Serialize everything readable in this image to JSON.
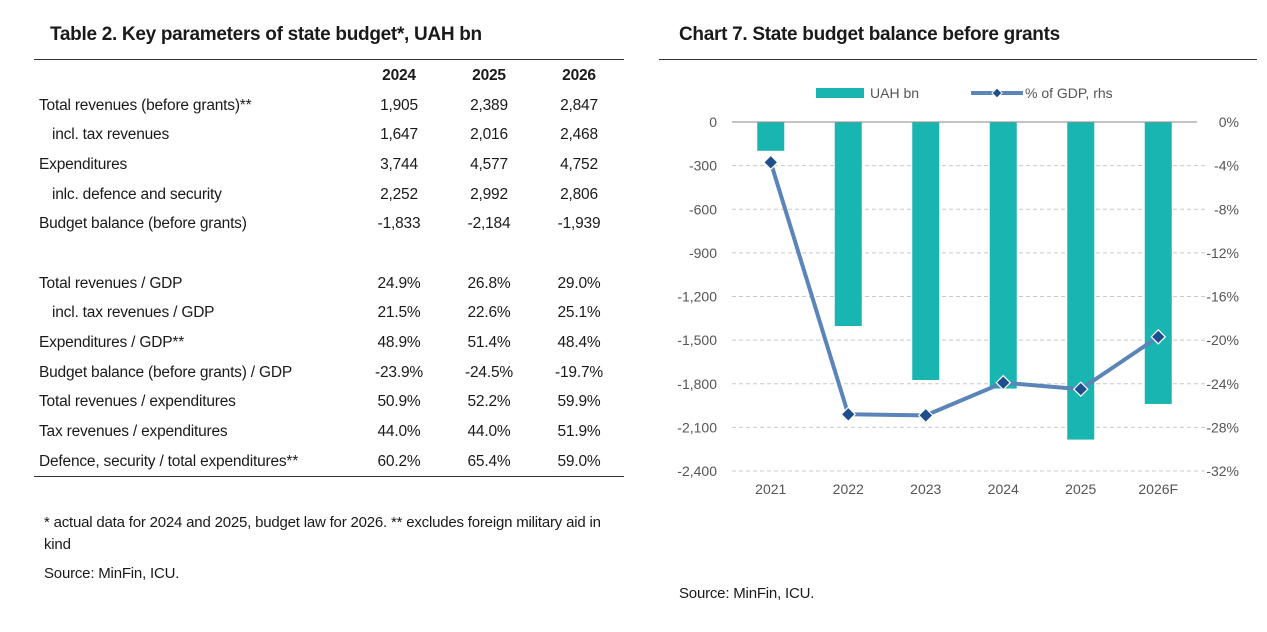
{
  "table": {
    "title": "Table 2. Key parameters of state budget*, UAH bn",
    "columns": [
      "2024",
      "2025",
      "2026"
    ],
    "rows": [
      {
        "label": "Total revenues (before grants)**",
        "indent": false,
        "values": [
          "1,905",
          "2,389",
          "2,847"
        ]
      },
      {
        "label": "incl. tax revenues",
        "indent": true,
        "values": [
          "1,647",
          "2,016",
          "2,468"
        ]
      },
      {
        "label": "Expenditures",
        "indent": false,
        "values": [
          "3,744",
          "4,577",
          "4,752"
        ]
      },
      {
        "label": "inlc. defence and security",
        "indent": true,
        "values": [
          "2,252",
          "2,992",
          "2,806"
        ]
      },
      {
        "label": "Budget balance (before grants)",
        "indent": false,
        "values": [
          "-1,833",
          "-2,184",
          "-1,939"
        ]
      },
      {
        "label": "",
        "indent": false,
        "values": [
          "",
          "",
          ""
        ]
      },
      {
        "label": "Total revenues / GDP",
        "indent": false,
        "values": [
          "24.9%",
          "26.8%",
          "29.0%"
        ]
      },
      {
        "label": "incl. tax revenues / GDP",
        "indent": true,
        "values": [
          "21.5%",
          "22.6%",
          "25.1%"
        ]
      },
      {
        "label": "Expenditures / GDP**",
        "indent": false,
        "values": [
          "48.9%",
          "51.4%",
          "48.4%"
        ]
      },
      {
        "label": "Budget balance (before grants) / GDP",
        "indent": false,
        "values": [
          "-23.9%",
          "-24.5%",
          "-19.7%"
        ]
      },
      {
        "label": "Total revenues / expenditures",
        "indent": false,
        "values": [
          "50.9%",
          "52.2%",
          "59.9%"
        ]
      },
      {
        "label": "Tax revenues / expenditures",
        "indent": false,
        "values": [
          "44.0%",
          "44.0%",
          "51.9%"
        ]
      },
      {
        "label": "Defence, security / total expenditures**",
        "indent": false,
        "values": [
          "60.2%",
          "65.4%",
          "59.0%"
        ]
      }
    ],
    "footnote": "* actual data for 2024 and 2025, budget law for 2026. ** excludes foreign military aid in kind",
    "source": "Source: MinFin, ICU."
  },
  "chart_source": "Source: MinFin, ICU.",
  "chart_data": {
    "type": "bar",
    "title": "Chart 7. State budget balance before grants",
    "categories": [
      "2021",
      "2022",
      "2023",
      "2024",
      "2025",
      "2026F"
    ],
    "series": [
      {
        "name": "UAH bn",
        "type": "bar",
        "axis": "left",
        "color": "#19b5b0",
        "values": [
          -198,
          -1403,
          -1774,
          -1833,
          -2184,
          -1939
        ]
      },
      {
        "name": "% of GDP, rhs",
        "type": "line",
        "axis": "right",
        "color": "#5b84b8",
        "marker_color": "#1f4e8c",
        "values": [
          -3.7,
          -26.8,
          -26.9,
          -23.9,
          -24.5,
          -19.7
        ]
      }
    ],
    "left_axis": {
      "min": -2400,
      "max": 0,
      "ticks": [
        0,
        -300,
        -600,
        -900,
        -1200,
        -1500,
        -1800,
        -2100,
        -2400
      ],
      "tick_labels": [
        "0",
        "-300",
        "-600",
        "-900",
        "-1,200",
        "-1,500",
        "-1,800",
        "-2,100",
        "-2,400"
      ]
    },
    "right_axis": {
      "min": -32,
      "max": 0,
      "ticks": [
        0,
        -4,
        -8,
        -12,
        -16,
        -20,
        -24,
        -28,
        -32
      ],
      "tick_labels": [
        "0%",
        "-4%",
        "-8%",
        "-12%",
        "-16%",
        "-20%",
        "-24%",
        "-28%",
        "-32%"
      ]
    },
    "grid": true,
    "legend": "top"
  }
}
